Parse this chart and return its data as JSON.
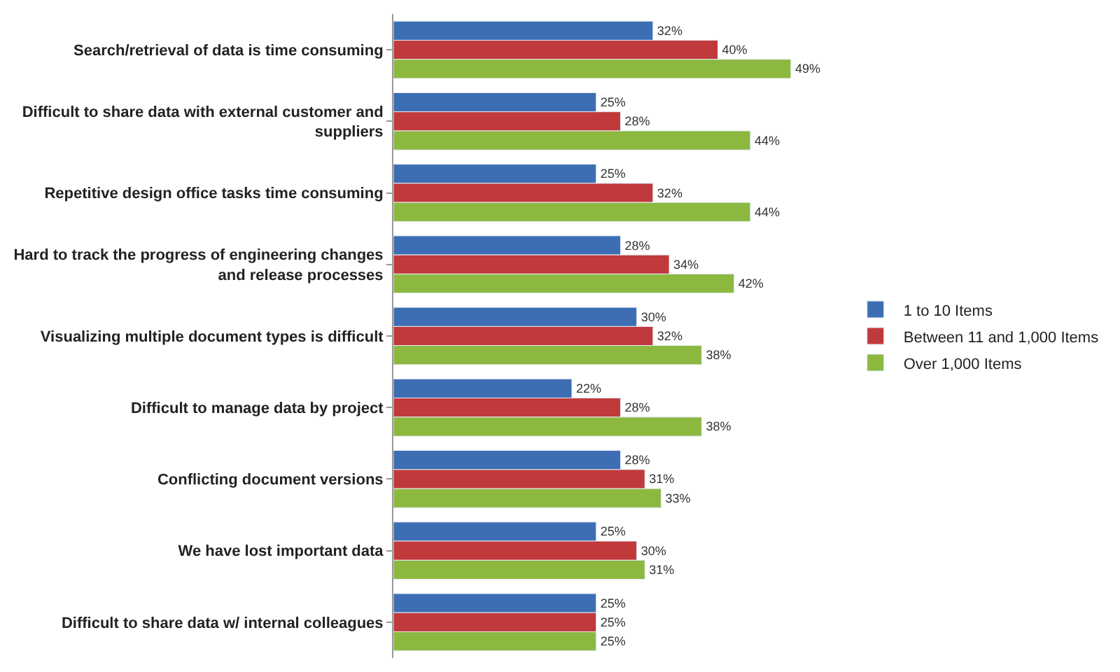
{
  "chart_data": {
    "type": "bar",
    "orientation": "horizontal",
    "categories": [
      "Search/retrieval of data is time consuming",
      "Difficult to share data with external customer and suppliers",
      "Repetitive design office tasks time consuming",
      "Hard to track the progress of engineering changes and release processes",
      "Visualizing multiple document types is difficult",
      "Difficult to manage data by project",
      "Conflicting document versions",
      "We have lost important data",
      "Difficult to share data w/ internal colleagues"
    ],
    "series": [
      {
        "name": "1 to 10 Items",
        "color": "#3d6eb4",
        "values": [
          32,
          25,
          25,
          28,
          30,
          22,
          28,
          25,
          25
        ],
        "value_labels": [
          "32%",
          "25%",
          "25%",
          "28%",
          "30%",
          "22%",
          "28%",
          "25%",
          "25%"
        ]
      },
      {
        "name": "Between 11 and 1,000 Items",
        "color": "#c0393b",
        "values": [
          40,
          28,
          32,
          34,
          32,
          28,
          31,
          30,
          25
        ],
        "value_labels": [
          "40%",
          "28%",
          "32%",
          "34%",
          "32%",
          "28%",
          "31%",
          "30%",
          "25%"
        ]
      },
      {
        "name": "Over 1,000 Items",
        "color": "#8cb840",
        "values": [
          49,
          44,
          44,
          42,
          38,
          38,
          33,
          31,
          25
        ],
        "value_labels": [
          "49%",
          "44%",
          "44%",
          "42%",
          "38%",
          "38%",
          "33%",
          "31%",
          "25%"
        ]
      }
    ],
    "legend": "right"
  }
}
